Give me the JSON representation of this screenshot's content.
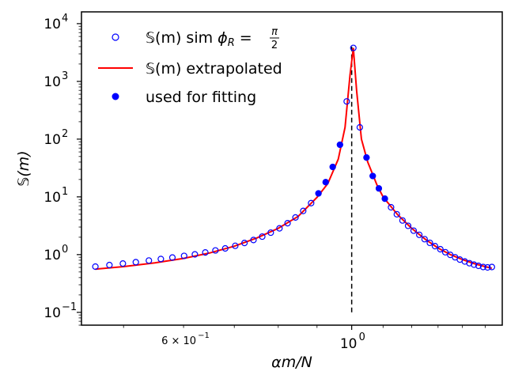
{
  "chart_data": {
    "type": "scatter",
    "xlabel": "αm/N",
    "ylabel": "𝕊(m)",
    "xscale": "log",
    "yscale": "log",
    "xlim": [
      0.44,
      1.58
    ],
    "ylim": [
      0.06,
      16000
    ],
    "grid": false,
    "legend_position": "top-left",
    "x_ticks": [
      {
        "value": 0.6,
        "mantissa": "6 × 10",
        "exponent": "−1"
      },
      {
        "value": 1.0,
        "mantissa": "10",
        "exponent": "0"
      }
    ],
    "y_ticks": [
      {
        "value": 0.1,
        "mantissa": "10",
        "exponent": "−1"
      },
      {
        "value": 1,
        "mantissa": "10",
        "exponent": "0"
      },
      {
        "value": 10,
        "mantissa": "10",
        "exponent": "1"
      },
      {
        "value": 100,
        "mantissa": "10",
        "exponent": "2"
      },
      {
        "value": 1000,
        "mantissa": "10",
        "exponent": "3"
      },
      {
        "value": 10000,
        "mantissa": "10",
        "exponent": "4"
      }
    ],
    "vline": {
      "x": 1.0,
      "y_range": [
        0.1,
        4000
      ],
      "style": "dashed",
      "color": "#000000"
    },
    "series": [
      {
        "name": "𝕊(m) sim ϕR = π/2",
        "legend": {
          "main": "𝕊(m) sim ",
          "phi": "ϕ",
          "sub": "R",
          "eq": " = ",
          "frac_num": "π",
          "frac_den": "2"
        },
        "marker": "open-circle",
        "color": "#0000ff",
        "points": [
          [
            0.459,
            0.62
          ],
          [
            0.479,
            0.66
          ],
          [
            0.499,
            0.7
          ],
          [
            0.519,
            0.74
          ],
          [
            0.54,
            0.79
          ],
          [
            0.56,
            0.84
          ],
          [
            0.58,
            0.89
          ],
          [
            0.601,
            0.95
          ],
          [
            0.621,
            1.01
          ],
          [
            0.641,
            1.09
          ],
          [
            0.661,
            1.18
          ],
          [
            0.681,
            1.28
          ],
          [
            0.702,
            1.42
          ],
          [
            0.722,
            1.59
          ],
          [
            0.742,
            1.79
          ],
          [
            0.762,
            2.05
          ],
          [
            0.782,
            2.4
          ],
          [
            0.803,
            2.85
          ],
          [
            0.823,
            3.5
          ],
          [
            0.843,
            4.4
          ],
          [
            0.863,
            5.7
          ],
          [
            0.884,
            7.8
          ],
          [
            0.904,
            11.5
          ],
          [
            0.924,
            18
          ],
          [
            0.944,
            33
          ],
          [
            0.965,
            80
          ],
          [
            0.985,
            450
          ],
          [
            1.005,
            3800
          ],
          [
            1.025,
            160
          ],
          [
            1.046,
            48
          ],
          [
            1.066,
            23
          ],
          [
            1.086,
            14
          ],
          [
            1.106,
            9.3
          ],
          [
            1.127,
            6.6
          ],
          [
            1.147,
            5.0
          ],
          [
            1.167,
            3.9
          ],
          [
            1.187,
            3.15
          ],
          [
            1.207,
            2.6
          ],
          [
            1.228,
            2.2
          ],
          [
            1.248,
            1.85
          ],
          [
            1.268,
            1.6
          ],
          [
            1.288,
            1.4
          ],
          [
            1.309,
            1.24
          ],
          [
            1.329,
            1.1
          ],
          [
            1.349,
            0.99
          ],
          [
            1.369,
            0.9
          ],
          [
            1.389,
            0.82
          ],
          [
            1.41,
            0.76
          ],
          [
            1.43,
            0.71
          ],
          [
            1.45,
            0.67
          ],
          [
            1.47,
            0.64
          ],
          [
            1.491,
            0.61
          ],
          [
            1.511,
            0.6
          ],
          [
            1.531,
            0.61
          ]
        ]
      },
      {
        "name": "𝕊(m) extrapolated",
        "marker": "line",
        "color": "#ff0000",
        "points": [
          [
            0.459,
            0.56
          ],
          [
            0.5,
            0.62
          ],
          [
            0.55,
            0.72
          ],
          [
            0.6,
            0.86
          ],
          [
            0.65,
            1.07
          ],
          [
            0.7,
            1.4
          ],
          [
            0.75,
            1.95
          ],
          [
            0.8,
            2.85
          ],
          [
            0.85,
            4.6
          ],
          [
            0.9,
            9.8
          ],
          [
            0.93,
            17
          ],
          [
            0.96,
            45
          ],
          [
            0.98,
            160
          ],
          [
            0.995,
            1300
          ],
          [
            1.005,
            3800
          ],
          [
            1.015,
            700
          ],
          [
            1.03,
            100
          ],
          [
            1.05,
            40
          ],
          [
            1.08,
            16
          ],
          [
            1.1,
            10
          ],
          [
            1.15,
            4.9
          ],
          [
            1.2,
            2.85
          ],
          [
            1.25,
            1.85
          ],
          [
            1.3,
            1.3
          ],
          [
            1.35,
            1.0
          ],
          [
            1.4,
            0.82
          ],
          [
            1.45,
            0.7
          ],
          [
            1.5,
            0.62
          ],
          [
            1.531,
            0.58
          ]
        ]
      },
      {
        "name": "used for fitting",
        "marker": "filled-circle",
        "color": "#0000ff",
        "points": [
          [
            0.904,
            11.5
          ],
          [
            0.924,
            18
          ],
          [
            0.944,
            33
          ],
          [
            0.965,
            80
          ],
          [
            1.046,
            48
          ],
          [
            1.066,
            23
          ],
          [
            1.086,
            14
          ],
          [
            1.106,
            9.3
          ]
        ]
      }
    ]
  }
}
